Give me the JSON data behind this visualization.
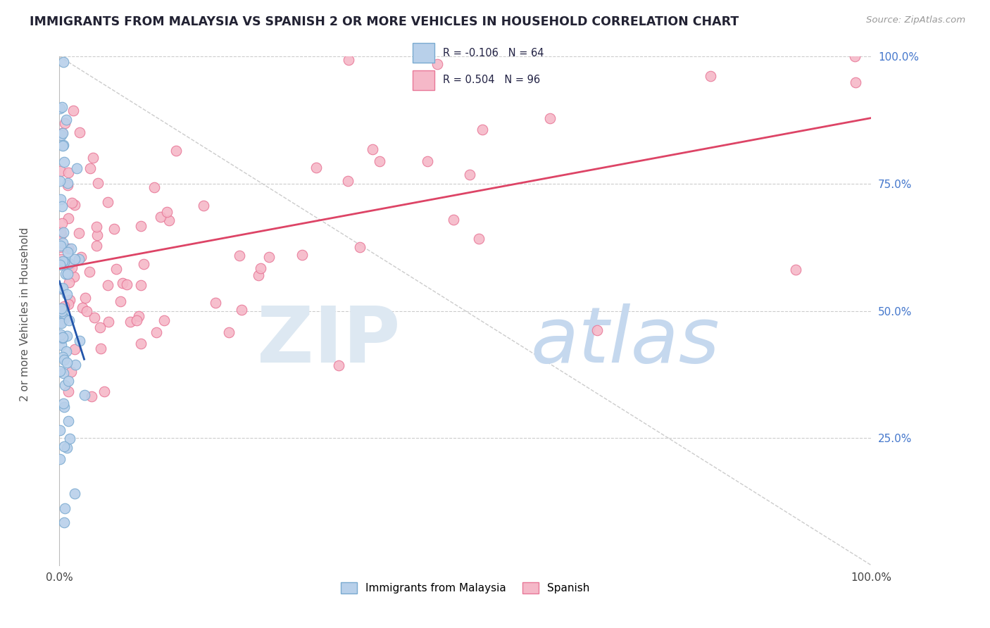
{
  "title": "IMMIGRANTS FROM MALAYSIA VS SPANISH 2 OR MORE VEHICLES IN HOUSEHOLD CORRELATION CHART",
  "source_text": "Source: ZipAtlas.com",
  "ylabel": "2 or more Vehicles in Household",
  "blue_label": "Immigrants from Malaysia",
  "pink_label": "Spanish",
  "blue_R": -0.106,
  "blue_N": 64,
  "pink_R": 0.504,
  "pink_N": 96,
  "blue_color": "#b8d0ea",
  "pink_color": "#f5b8c8",
  "blue_edge": "#7aaad0",
  "pink_edge": "#e87898",
  "blue_line_color": "#2255aa",
  "pink_line_color": "#dd4466",
  "diag_line_color": "#cccccc",
  "grid_color": "#cccccc",
  "background_color": "#ffffff",
  "ytick_color": "#4477cc",
  "title_color": "#222233",
  "source_color": "#999999",
  "legend_border_color": "#cccccc",
  "watermark_zip_color": "#e0e8f0",
  "watermark_atlas_color": "#c8d8ee"
}
